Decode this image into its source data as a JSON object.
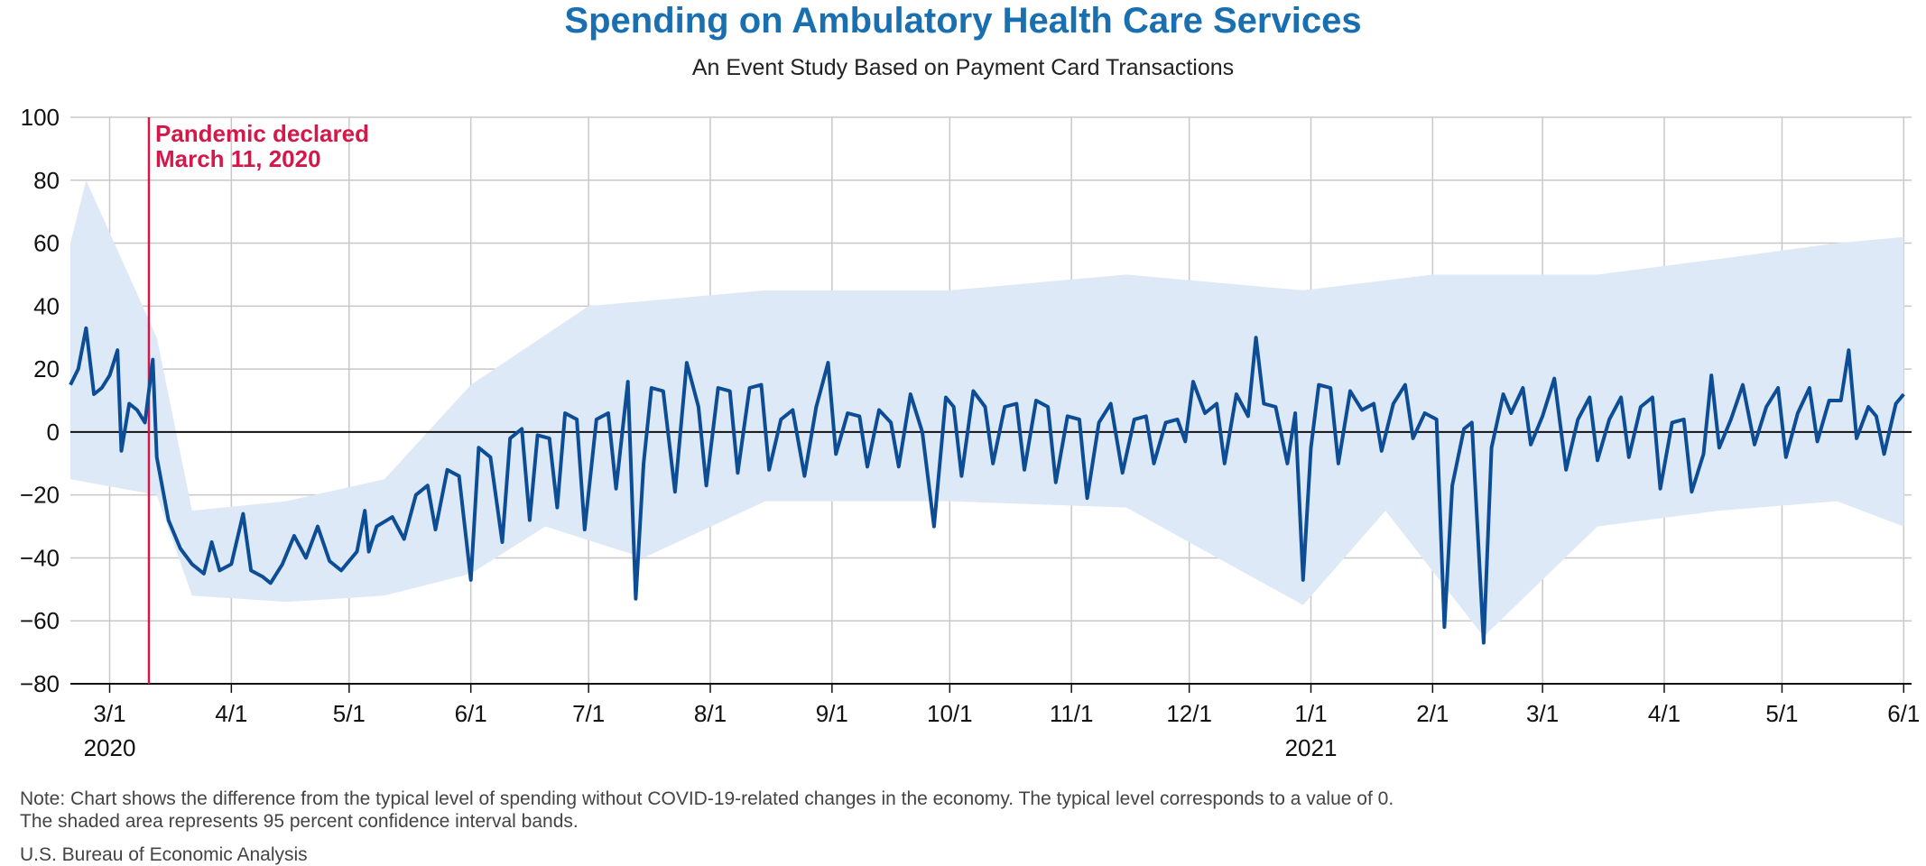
{
  "colors": {
    "title": "#1a6fb0",
    "line": "#0d4d96",
    "band": "#dde9f6",
    "grid": "#c8c8c8",
    "zero_line": "#111111",
    "event_line": "#d4184a"
  },
  "note": {
    "line1": "Note: Chart shows the difference from the typical level of spending without COVID-19-related changes in the economy. The typical level corresponds to a value of 0.",
    "line2": "The shaded area represents 95 percent confidence interval bands."
  },
  "source": "U.S. Bureau of Economic Analysis",
  "chart_data": {
    "type": "line",
    "title": "Spending on Ambulatory Health Care Services",
    "subtitle": "An Event Study Based on Payment Card Transactions",
    "xlabel": "",
    "ylabel": "",
    "x_range": [
      "2020-02-20",
      "2021-06-03"
    ],
    "ylim": [
      -80,
      100
    ],
    "y_ticks": [
      -80,
      -60,
      -40,
      -20,
      0,
      20,
      40,
      60,
      80,
      100
    ],
    "x_ticks": [
      {
        "date": "2020-03-01",
        "label": "3/1",
        "year_label": "2020"
      },
      {
        "date": "2020-04-01",
        "label": "4/1"
      },
      {
        "date": "2020-05-01",
        "label": "5/1"
      },
      {
        "date": "2020-06-01",
        "label": "6/1"
      },
      {
        "date": "2020-07-01",
        "label": "7/1"
      },
      {
        "date": "2020-08-01",
        "label": "8/1"
      },
      {
        "date": "2020-09-01",
        "label": "9/1"
      },
      {
        "date": "2020-10-01",
        "label": "10/1"
      },
      {
        "date": "2020-11-01",
        "label": "11/1"
      },
      {
        "date": "2020-12-01",
        "label": "12/1"
      },
      {
        "date": "2021-01-01",
        "label": "1/1",
        "year_label": "2021"
      },
      {
        "date": "2021-02-01",
        "label": "2/1"
      },
      {
        "date": "2021-03-01",
        "label": "3/1"
      },
      {
        "date": "2021-04-01",
        "label": "4/1"
      },
      {
        "date": "2021-05-01",
        "label": "5/1"
      },
      {
        "date": "2021-06-01",
        "label": "6/1"
      }
    ],
    "grid": "vertical",
    "zero_line": true,
    "event": {
      "date": "2020-03-11",
      "label_line1": "Pandemic declared",
      "label_line2": "March 11, 2020"
    },
    "series": [
      {
        "points": [
          [
            "2020-02-20",
            15
          ],
          [
            "2020-02-22",
            20
          ],
          [
            "2020-02-24",
            33
          ],
          [
            "2020-02-26",
            12
          ],
          [
            "2020-02-28",
            14
          ],
          [
            "2020-03-01",
            18
          ],
          [
            "2020-03-03",
            26
          ],
          [
            "2020-03-04",
            -6
          ],
          [
            "2020-03-06",
            9
          ],
          [
            "2020-03-08",
            7
          ],
          [
            "2020-03-10",
            3
          ],
          [
            "2020-03-12",
            23
          ],
          [
            "2020-03-13",
            -8
          ],
          [
            "2020-03-16",
            -28
          ],
          [
            "2020-03-19",
            -37
          ],
          [
            "2020-03-22",
            -42
          ],
          [
            "2020-03-25",
            -45
          ],
          [
            "2020-03-27",
            -35
          ],
          [
            "2020-03-29",
            -44
          ],
          [
            "2020-04-01",
            -42
          ],
          [
            "2020-04-04",
            -26
          ],
          [
            "2020-04-06",
            -44
          ],
          [
            "2020-04-09",
            -46
          ],
          [
            "2020-04-11",
            -48
          ],
          [
            "2020-04-14",
            -42
          ],
          [
            "2020-04-17",
            -33
          ],
          [
            "2020-04-20",
            -40
          ],
          [
            "2020-04-23",
            -30
          ],
          [
            "2020-04-26",
            -41
          ],
          [
            "2020-04-29",
            -44
          ],
          [
            "2020-05-03",
            -38
          ],
          [
            "2020-05-05",
            -25
          ],
          [
            "2020-05-06",
            -38
          ],
          [
            "2020-05-08",
            -30
          ],
          [
            "2020-05-12",
            -27
          ],
          [
            "2020-05-15",
            -34
          ],
          [
            "2020-05-18",
            -20
          ],
          [
            "2020-05-21",
            -17
          ],
          [
            "2020-05-23",
            -31
          ],
          [
            "2020-05-26",
            -12
          ],
          [
            "2020-05-29",
            -14
          ],
          [
            "2020-06-01",
            -47
          ],
          [
            "2020-06-03",
            -5
          ],
          [
            "2020-06-06",
            -8
          ],
          [
            "2020-06-09",
            -35
          ],
          [
            "2020-06-11",
            -2
          ],
          [
            "2020-06-14",
            1
          ],
          [
            "2020-06-16",
            -28
          ],
          [
            "2020-06-18",
            -1
          ],
          [
            "2020-06-21",
            -2
          ],
          [
            "2020-06-23",
            -24
          ],
          [
            "2020-06-25",
            6
          ],
          [
            "2020-06-28",
            4
          ],
          [
            "2020-06-30",
            -31
          ],
          [
            "2020-07-03",
            4
          ],
          [
            "2020-07-06",
            6
          ],
          [
            "2020-07-08",
            -18
          ],
          [
            "2020-07-11",
            16
          ],
          [
            "2020-07-13",
            -53
          ],
          [
            "2020-07-15",
            -10
          ],
          [
            "2020-07-17",
            14
          ],
          [
            "2020-07-20",
            13
          ],
          [
            "2020-07-23",
            -19
          ],
          [
            "2020-07-26",
            22
          ],
          [
            "2020-07-29",
            8
          ],
          [
            "2020-07-31",
            -17
          ],
          [
            "2020-08-03",
            14
          ],
          [
            "2020-08-06",
            13
          ],
          [
            "2020-08-08",
            -13
          ],
          [
            "2020-08-11",
            14
          ],
          [
            "2020-08-14",
            15
          ],
          [
            "2020-08-16",
            -12
          ],
          [
            "2020-08-19",
            4
          ],
          [
            "2020-08-22",
            7
          ],
          [
            "2020-08-25",
            -14
          ],
          [
            "2020-08-28",
            8
          ],
          [
            "2020-08-31",
            22
          ],
          [
            "2020-09-02",
            -7
          ],
          [
            "2020-09-05",
            6
          ],
          [
            "2020-09-08",
            5
          ],
          [
            "2020-09-10",
            -11
          ],
          [
            "2020-09-13",
            7
          ],
          [
            "2020-09-16",
            3
          ],
          [
            "2020-09-18",
            -11
          ],
          [
            "2020-09-21",
            12
          ],
          [
            "2020-09-24",
            0
          ],
          [
            "2020-09-27",
            -30
          ],
          [
            "2020-09-30",
            11
          ],
          [
            "2020-10-02",
            8
          ],
          [
            "2020-10-04",
            -14
          ],
          [
            "2020-10-07",
            13
          ],
          [
            "2020-10-10",
            8
          ],
          [
            "2020-10-12",
            -10
          ],
          [
            "2020-10-15",
            8
          ],
          [
            "2020-10-18",
            9
          ],
          [
            "2020-10-20",
            -12
          ],
          [
            "2020-10-23",
            10
          ],
          [
            "2020-10-26",
            8
          ],
          [
            "2020-10-28",
            -16
          ],
          [
            "2020-10-31",
            5
          ],
          [
            "2020-11-03",
            4
          ],
          [
            "2020-11-05",
            -21
          ],
          [
            "2020-11-08",
            3
          ],
          [
            "2020-11-11",
            9
          ],
          [
            "2020-11-14",
            -13
          ],
          [
            "2020-11-17",
            4
          ],
          [
            "2020-11-20",
            5
          ],
          [
            "2020-11-22",
            -10
          ],
          [
            "2020-11-25",
            3
          ],
          [
            "2020-11-28",
            4
          ],
          [
            "2020-11-30",
            -3
          ],
          [
            "2020-12-02",
            16
          ],
          [
            "2020-12-05",
            6
          ],
          [
            "2020-12-08",
            9
          ],
          [
            "2020-12-10",
            -10
          ],
          [
            "2020-12-13",
            12
          ],
          [
            "2020-12-16",
            5
          ],
          [
            "2020-12-18",
            30
          ],
          [
            "2020-12-20",
            9
          ],
          [
            "2020-12-23",
            8
          ],
          [
            "2020-12-26",
            -10
          ],
          [
            "2020-12-28",
            6
          ],
          [
            "2020-12-30",
            -47
          ],
          [
            "2021-01-01",
            -5
          ],
          [
            "2021-01-03",
            15
          ],
          [
            "2021-01-06",
            14
          ],
          [
            "2021-01-08",
            -10
          ],
          [
            "2021-01-11",
            13
          ],
          [
            "2021-01-14",
            7
          ],
          [
            "2021-01-17",
            9
          ],
          [
            "2021-01-19",
            -6
          ],
          [
            "2021-01-22",
            9
          ],
          [
            "2021-01-25",
            15
          ],
          [
            "2021-01-27",
            -2
          ],
          [
            "2021-01-30",
            6
          ],
          [
            "2021-02-02",
            4
          ],
          [
            "2021-02-04",
            -62
          ],
          [
            "2021-02-06",
            -17
          ],
          [
            "2021-02-09",
            1
          ],
          [
            "2021-02-11",
            3
          ],
          [
            "2021-02-14",
            -67
          ],
          [
            "2021-02-16",
            -5
          ],
          [
            "2021-02-19",
            12
          ],
          [
            "2021-02-21",
            6
          ],
          [
            "2021-02-24",
            14
          ],
          [
            "2021-02-26",
            -4
          ],
          [
            "2021-03-01",
            5
          ],
          [
            "2021-03-04",
            17
          ],
          [
            "2021-03-07",
            -12
          ],
          [
            "2021-03-10",
            4
          ],
          [
            "2021-03-13",
            11
          ],
          [
            "2021-03-15",
            -9
          ],
          [
            "2021-03-18",
            4
          ],
          [
            "2021-03-21",
            11
          ],
          [
            "2021-03-23",
            -8
          ],
          [
            "2021-03-26",
            8
          ],
          [
            "2021-03-29",
            11
          ],
          [
            "2021-03-31",
            -18
          ],
          [
            "2021-04-03",
            3
          ],
          [
            "2021-04-06",
            4
          ],
          [
            "2021-04-08",
            -19
          ],
          [
            "2021-04-11",
            -7
          ],
          [
            "2021-04-13",
            18
          ],
          [
            "2021-04-15",
            -5
          ],
          [
            "2021-04-18",
            4
          ],
          [
            "2021-04-21",
            15
          ],
          [
            "2021-04-24",
            -4
          ],
          [
            "2021-04-27",
            8
          ],
          [
            "2021-04-30",
            14
          ],
          [
            "2021-05-02",
            -8
          ],
          [
            "2021-05-05",
            6
          ],
          [
            "2021-05-08",
            14
          ],
          [
            "2021-05-10",
            -3
          ],
          [
            "2021-05-13",
            10
          ],
          [
            "2021-05-16",
            10
          ],
          [
            "2021-05-18",
            26
          ],
          [
            "2021-05-20",
            -2
          ],
          [
            "2021-05-23",
            8
          ],
          [
            "2021-05-25",
            5
          ],
          [
            "2021-05-27",
            -7
          ],
          [
            "2021-05-30",
            9
          ],
          [
            "2021-06-01",
            12
          ]
        ],
        "ci_lower": [
          [
            "2020-02-20",
            -15
          ],
          [
            "2020-03-13",
            -20
          ],
          [
            "2020-03-22",
            -52
          ],
          [
            "2020-04-15",
            -54
          ],
          [
            "2020-05-10",
            -52
          ],
          [
            "2020-06-01",
            -45
          ],
          [
            "2020-06-20",
            -30
          ],
          [
            "2020-07-15",
            -40
          ],
          [
            "2020-08-15",
            -22
          ],
          [
            "2020-10-01",
            -22
          ],
          [
            "2020-11-15",
            -24
          ],
          [
            "2020-12-30",
            -55
          ],
          [
            "2021-01-20",
            -25
          ],
          [
            "2021-02-14",
            -65
          ],
          [
            "2021-03-15",
            -30
          ],
          [
            "2021-04-15",
            -25
          ],
          [
            "2021-05-15",
            -22
          ],
          [
            "2021-06-01",
            -30
          ]
        ],
        "ci_upper": [
          [
            "2020-02-20",
            60
          ],
          [
            "2020-02-24",
            80
          ],
          [
            "2020-03-13",
            30
          ],
          [
            "2020-03-22",
            -25
          ],
          [
            "2020-04-15",
            -22
          ],
          [
            "2020-05-10",
            -15
          ],
          [
            "2020-06-01",
            15
          ],
          [
            "2020-07-01",
            40
          ],
          [
            "2020-08-15",
            45
          ],
          [
            "2020-10-01",
            45
          ],
          [
            "2020-11-15",
            50
          ],
          [
            "2020-12-30",
            45
          ],
          [
            "2021-02-01",
            50
          ],
          [
            "2021-03-15",
            50
          ],
          [
            "2021-04-15",
            55
          ],
          [
            "2021-05-15",
            60
          ],
          [
            "2021-06-01",
            62
          ]
        ]
      }
    ]
  }
}
